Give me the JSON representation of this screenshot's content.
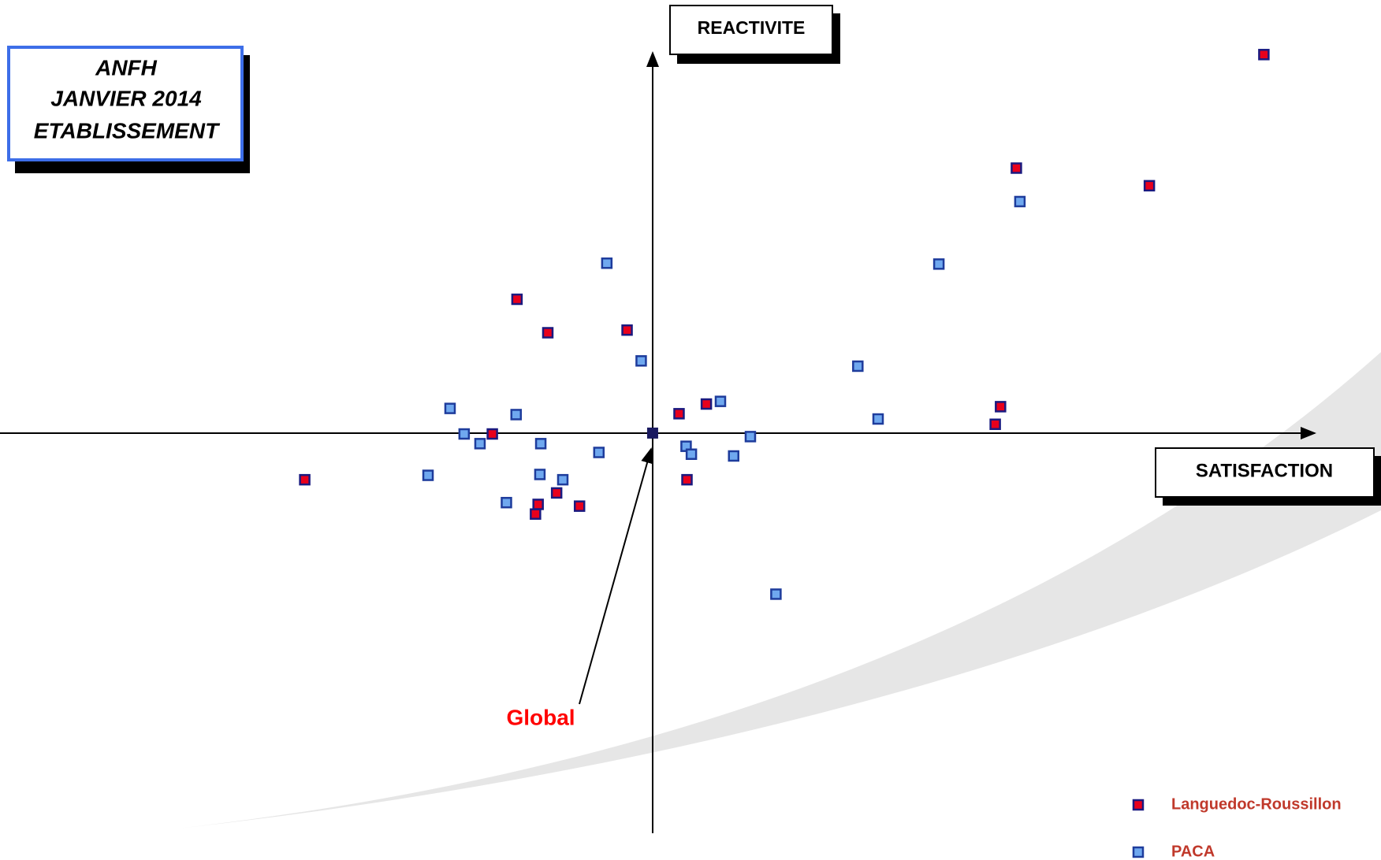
{
  "chart_data": {
    "type": "scatter",
    "title": [
      "ANFH",
      "JANVIER 2014",
      "ETABLISSEMENT"
    ],
    "x_label": "SATISFACTION",
    "y_label": "REACTIVITE",
    "xlim": [
      -741,
      827
    ],
    "ylim": [
      -485,
      492
    ],
    "annotation": {
      "text": "Global",
      "x": 0,
      "y": 0,
      "color": "#1a1a60"
    },
    "series": [
      {
        "name": "Languedoc-Roussillon",
        "color": "#e8001c",
        "edge": "#1a1a80",
        "x": [
          694,
          413,
          564,
          -154,
          -119,
          -29,
          30,
          61,
          395,
          389,
          -182,
          -395,
          39,
          -109,
          -130,
          -133,
          -83
        ],
        "y": [
          430,
          301,
          281,
          152,
          114,
          117,
          22,
          33,
          30,
          10,
          -1,
          -53,
          -53,
          -68,
          -81,
          -92,
          -83
        ]
      },
      {
        "name": "PACA",
        "color": "#6fa8ef",
        "edge": "#1e3c9c",
        "x": [
          -52,
          417,
          325,
          -13,
          233,
          77,
          -230,
          -155,
          256,
          -214,
          -196,
          -127,
          111,
          -61,
          38,
          44,
          92,
          -255,
          -128,
          -102,
          -166,
          140
        ],
        "y": [
          193,
          263,
          192,
          82,
          76,
          36,
          28,
          21,
          16,
          -1,
          -12,
          -12,
          -4,
          -22,
          -15,
          -24,
          -26,
          -48,
          -47,
          -53,
          -79,
          -183
        ]
      }
    ]
  }
}
